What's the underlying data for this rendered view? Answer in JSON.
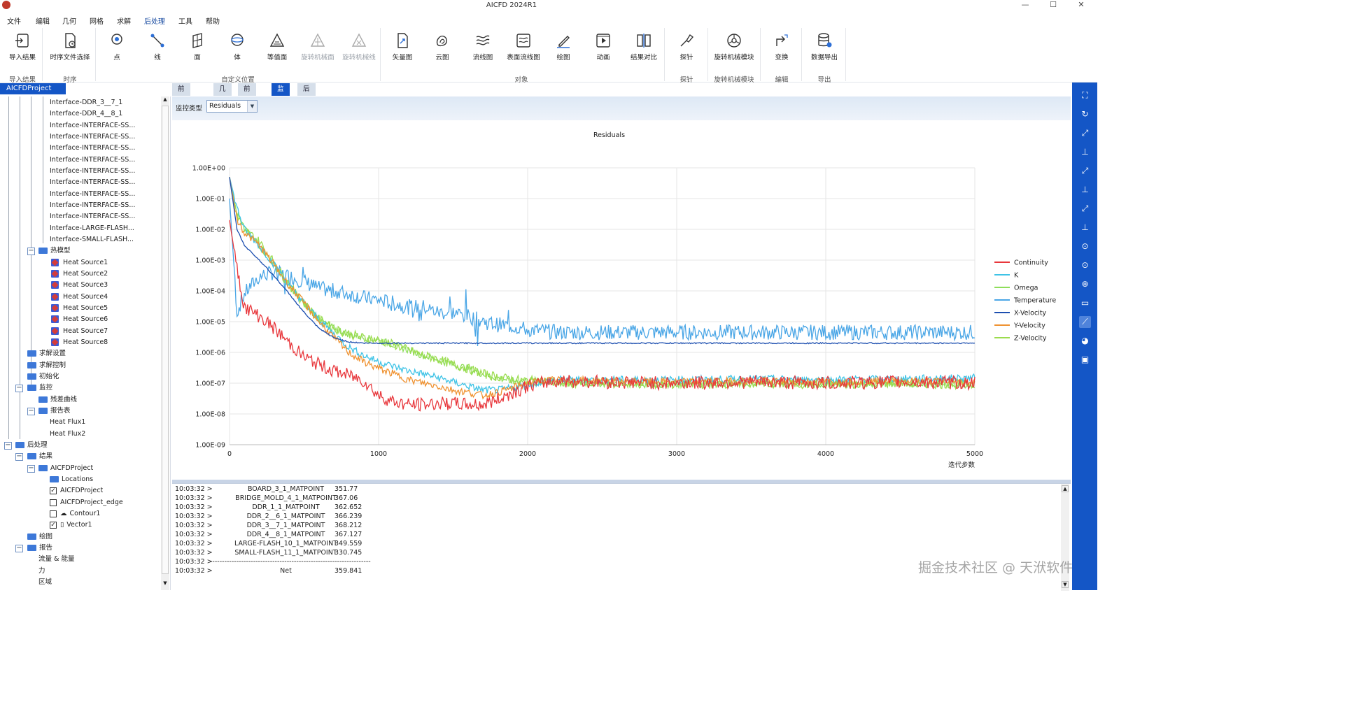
{
  "app": {
    "title": "AICFD 2024R1",
    "minimize": "—",
    "maximize": "☐",
    "close": "✕"
  },
  "menu": [
    "文件",
    "编辑",
    "几何",
    "网格",
    "求解",
    "后处理",
    "工具",
    "帮助"
  ],
  "ribbon": {
    "buttons": [
      {
        "label": "导入结果",
        "icon": "import-icon"
      },
      {
        "label": "时序文件选择",
        "icon": "timeseries-file-icon"
      },
      {
        "label": "点",
        "icon": "point-icon"
      },
      {
        "label": "线",
        "icon": "line-icon"
      },
      {
        "label": "面",
        "icon": "plane-icon"
      },
      {
        "label": "体",
        "icon": "volume-icon"
      },
      {
        "label": "等值面",
        "icon": "isosurface-icon"
      },
      {
        "label": "旋转机械面",
        "icon": "turbo-surface-icon"
      },
      {
        "label": "旋转机械线",
        "icon": "turbo-line-icon"
      },
      {
        "label": "矢量图",
        "icon": "vector-icon"
      },
      {
        "label": "云图",
        "icon": "contour-icon"
      },
      {
        "label": "流线图",
        "icon": "streamline-icon"
      },
      {
        "label": "表面流线图",
        "icon": "surface-streamline-icon"
      },
      {
        "label": "绘图",
        "icon": "plot-icon"
      },
      {
        "label": "动画",
        "icon": "animation-icon"
      },
      {
        "label": "结果对比",
        "icon": "compare-icon"
      },
      {
        "label": "探针",
        "icon": "probe-icon"
      },
      {
        "label": "旋转机械模块",
        "icon": "turbo-module-icon"
      },
      {
        "label": "变换",
        "icon": "transform-icon"
      },
      {
        "label": "数据导出",
        "icon": "export-icon"
      }
    ],
    "groups": [
      "导入结果",
      "时序",
      "自定义位置",
      "对象",
      "探针",
      "旋转机械模块",
      "编辑",
      "导出"
    ]
  },
  "tree": {
    "header": "AICFDProject",
    "interfaces": [
      "Interface-DDR_3__7_1",
      "Interface-DDR_4__8_1",
      "Interface-INTERFACE-SS...",
      "Interface-INTERFACE-SS...",
      "Interface-INTERFACE-SS...",
      "Interface-INTERFACE-SS...",
      "Interface-INTERFACE-SS...",
      "Interface-INTERFACE-SS...",
      "Interface-INTERFACE-SS...",
      "Interface-INTERFACE-SS...",
      "Interface-INTERFACE-SS...",
      "Interface-LARGE-FLASH...",
      "Interface-SMALL-FLASH..."
    ],
    "thermal_model": "热模型",
    "heat_sources": [
      "Heat Source1",
      "Heat Source2",
      "Heat Source3",
      "Heat Source4",
      "Heat Source5",
      "Heat Source6",
      "Heat Source7",
      "Heat Source8"
    ],
    "solve_settings": "求解设置",
    "solve_control": "求解控制",
    "initialization": "初始化",
    "monitor": "监控",
    "residual_curve": "残差曲线",
    "report_table": "报告表",
    "heat_flux": [
      "Heat Flux1",
      "Heat Flux2"
    ],
    "postprocess": "后处理",
    "results": "结果",
    "project": "AICFDProject",
    "locations": "Locations",
    "project_item": "AICFDProject",
    "project_edge": "AICFDProject_edge",
    "contour": "Contour1",
    "vector": "Vector1",
    "plotting": "绘图",
    "report": "报告",
    "flow_energy": "流量 & 能量",
    "force": "力",
    "region": "区域"
  },
  "tabs": [
    "前前处理",
    "几何",
    "前处理",
    "监控",
    "后处理"
  ],
  "active_tab": "监控",
  "monitor_type": {
    "label": "监控类型",
    "value": "Residuals"
  },
  "chart_data": {
    "type": "line",
    "title": "Residuals",
    "xlabel": "迭代步数",
    "ylabel": "",
    "y_scale": "log",
    "xlim": [
      0,
      5000
    ],
    "ylim": [
      1e-09,
      1
    ],
    "x_ticks": [
      "0",
      "1000",
      "2000",
      "3000",
      "4000",
      "5000"
    ],
    "y_ticks": [
      "1.00E+00",
      "1.00E-01",
      "1.00E-02",
      "1.00E-03",
      "1.00E-04",
      "1.00E-05",
      "1.00E-06",
      "1.00E-07",
      "1.00E-08",
      "1.00E-09"
    ],
    "grid": true,
    "legend_position": "right",
    "x": [
      0,
      50,
      100,
      200,
      300,
      400,
      500,
      600,
      700,
      800,
      900,
      1000,
      1100,
      1200,
      1300,
      1400,
      1500,
      1600,
      1700,
      1800,
      1900,
      2000,
      2100,
      2200,
      2500,
      3000,
      3500,
      4000,
      4500,
      5000
    ],
    "series": [
      {
        "name": "Continuity",
        "color": "#e8373c",
        "values": [
          0.02,
          0.0005,
          3e-05,
          1.5e-05,
          6e-06,
          2e-06,
          7e-07,
          4e-07,
          2.5e-07,
          1.8e-07,
          1.2e-07,
          4e-08,
          2.5e-08,
          2e-08,
          2e-08,
          2.2e-08,
          2.2e-08,
          2e-08,
          2e-08,
          3e-08,
          5e-08,
          8e-08,
          1e-07,
          1.2e-07,
          1.1e-07,
          1e-07,
          1.1e-07,
          1e-07,
          1.1e-07,
          1e-07
        ]
      },
      {
        "name": "K",
        "color": "#3fc3e6",
        "values": [
          0.5,
          0.05,
          0.01,
          0.003,
          0.0007,
          0.00015,
          4e-05,
          1.2e-05,
          4e-06,
          1.5e-06,
          8e-07,
          5e-07,
          3.5e-07,
          2.5e-07,
          2e-07,
          1.5e-07,
          1.1e-07,
          8e-08,
          6e-08,
          6e-08,
          7e-08,
          9e-08,
          1.1e-07,
          1.3e-07,
          1.3e-07,
          1.3e-07,
          1.4e-07,
          1.3e-07,
          1.4e-07,
          1.5e-07
        ]
      },
      {
        "name": "Omega",
        "color": "#8ede5a",
        "values": [
          0.5,
          0.03,
          0.01,
          0.003,
          0.0007,
          0.00015,
          4e-05,
          1.2e-05,
          6e-06,
          4e-06,
          3e-06,
          2.5e-06,
          1.8e-06,
          1.2e-06,
          8e-07,
          6e-07,
          4e-07,
          3e-07,
          2e-07,
          1.5e-07,
          1.2e-07,
          1.2e-07,
          1.2e-07,
          1e-07,
          1e-07,
          9e-08,
          1e-07,
          9e-08,
          1e-07,
          9e-08
        ]
      },
      {
        "name": "Temperature",
        "color": "#4aa6e6",
        "values": [
          0.1,
          2e-05,
          8e-05,
          0.0003,
          0.0004,
          0.0003,
          0.0002,
          0.00012,
          0.0001,
          8e-05,
          6e-05,
          5e-05,
          4e-05,
          3e-05,
          3e-05,
          2e-05,
          2e-05,
          1.5e-05,
          1e-05,
          8e-06,
          7e-06,
          5.5e-06,
          5e-06,
          4.5e-06,
          4.5e-06,
          4.5e-06,
          4.5e-06,
          4.5e-06,
          4.5e-06,
          4.5e-06
        ]
      },
      {
        "name": "X-Velocity",
        "color": "#1d4fb0",
        "values": [
          0.5,
          0.01,
          0.003,
          0.001,
          0.0003,
          8e-05,
          2e-05,
          6e-06,
          3e-06,
          2.2e-06,
          2e-06,
          2e-06,
          2e-06,
          2e-06,
          2e-06,
          2e-06,
          2e-06,
          2e-06,
          2e-06,
          2e-06,
          2e-06,
          2e-06,
          2e-06,
          2e-06,
          2e-06,
          2e-06,
          2e-06,
          2e-06,
          2e-06,
          2e-06
        ]
      },
      {
        "name": "Y-Velocity",
        "color": "#ef9231",
        "values": [
          0.5,
          0.02,
          0.008,
          0.003,
          0.0007,
          0.00015,
          4e-05,
          1e-05,
          3e-06,
          1e-06,
          5e-07,
          3e-07,
          2e-07,
          1.3e-07,
          1e-07,
          8e-08,
          6e-08,
          5e-08,
          4e-08,
          5e-08,
          7e-08,
          1e-07,
          1.2e-07,
          1.3e-07,
          1.2e-07,
          1.1e-07,
          1.2e-07,
          1.1e-07,
          1.2e-07,
          1.1e-07
        ]
      },
      {
        "name": "Z-Velocity",
        "color": "#9bdc4e",
        "values": [
          0.5,
          0.03,
          0.01,
          0.004,
          0.0008,
          0.00015,
          4e-05,
          1.2e-05,
          6e-06,
          4e-06,
          3e-06,
          2.5e-06,
          1.8e-06,
          1.2e-06,
          8e-07,
          6e-07,
          4e-07,
          3e-07,
          2e-07,
          1.6e-07,
          1.3e-07,
          1.2e-07,
          1.2e-07,
          1e-07,
          1e-07,
          9e-08,
          1e-07,
          9e-08,
          1e-07,
          9e-08
        ]
      }
    ]
  },
  "console": [
    {
      "time": "10:03:32 >",
      "name": "BOARD_3_1_MATPOINT",
      "value": "351.77"
    },
    {
      "time": "10:03:32 >",
      "name": "BRIDGE_MOLD_4_1_MATPOINT",
      "value": "367.06"
    },
    {
      "time": "10:03:32 >",
      "name": "DDR_1_1_MATPOINT",
      "value": "362.652"
    },
    {
      "time": "10:03:32 >",
      "name": "DDR_2__6_1_MATPOINT",
      "value": "366.239"
    },
    {
      "time": "10:03:32 >",
      "name": "DDR_3__7_1_MATPOINT",
      "value": "368.212"
    },
    {
      "time": "10:03:32 >",
      "name": "DDR_4__8_1_MATPOINT",
      "value": "367.127"
    },
    {
      "time": "10:03:32 >",
      "name": "LARGE-FLASH_10_1_MATPOINT",
      "value": "349.559"
    },
    {
      "time": "10:03:32 >",
      "name": "SMALL-FLASH_11_1_MATPOINT",
      "value": "330.745"
    },
    {
      "time": "10:03:32 >",
      "name": "-------------------------------------------------------------------",
      "value": ""
    },
    {
      "time": "10:03:32 >",
      "name": "Net",
      "value": "359.841"
    }
  ],
  "watermark": "掘金技术社区 @ 天洑软件",
  "right_toolbar": [
    "fit-view-icon",
    "rotate-icon",
    "axis-xy-icon",
    "axis-yz-icon",
    "axis-xz-icon",
    "axis-zy-icon",
    "axis-zx-icon",
    "axis-yx-icon",
    "rotate-90-icon",
    "rotate-minus-90-icon",
    "zoom-icon",
    "ruler-icon",
    "select-icon",
    "palette-icon",
    "screenshot-icon"
  ]
}
